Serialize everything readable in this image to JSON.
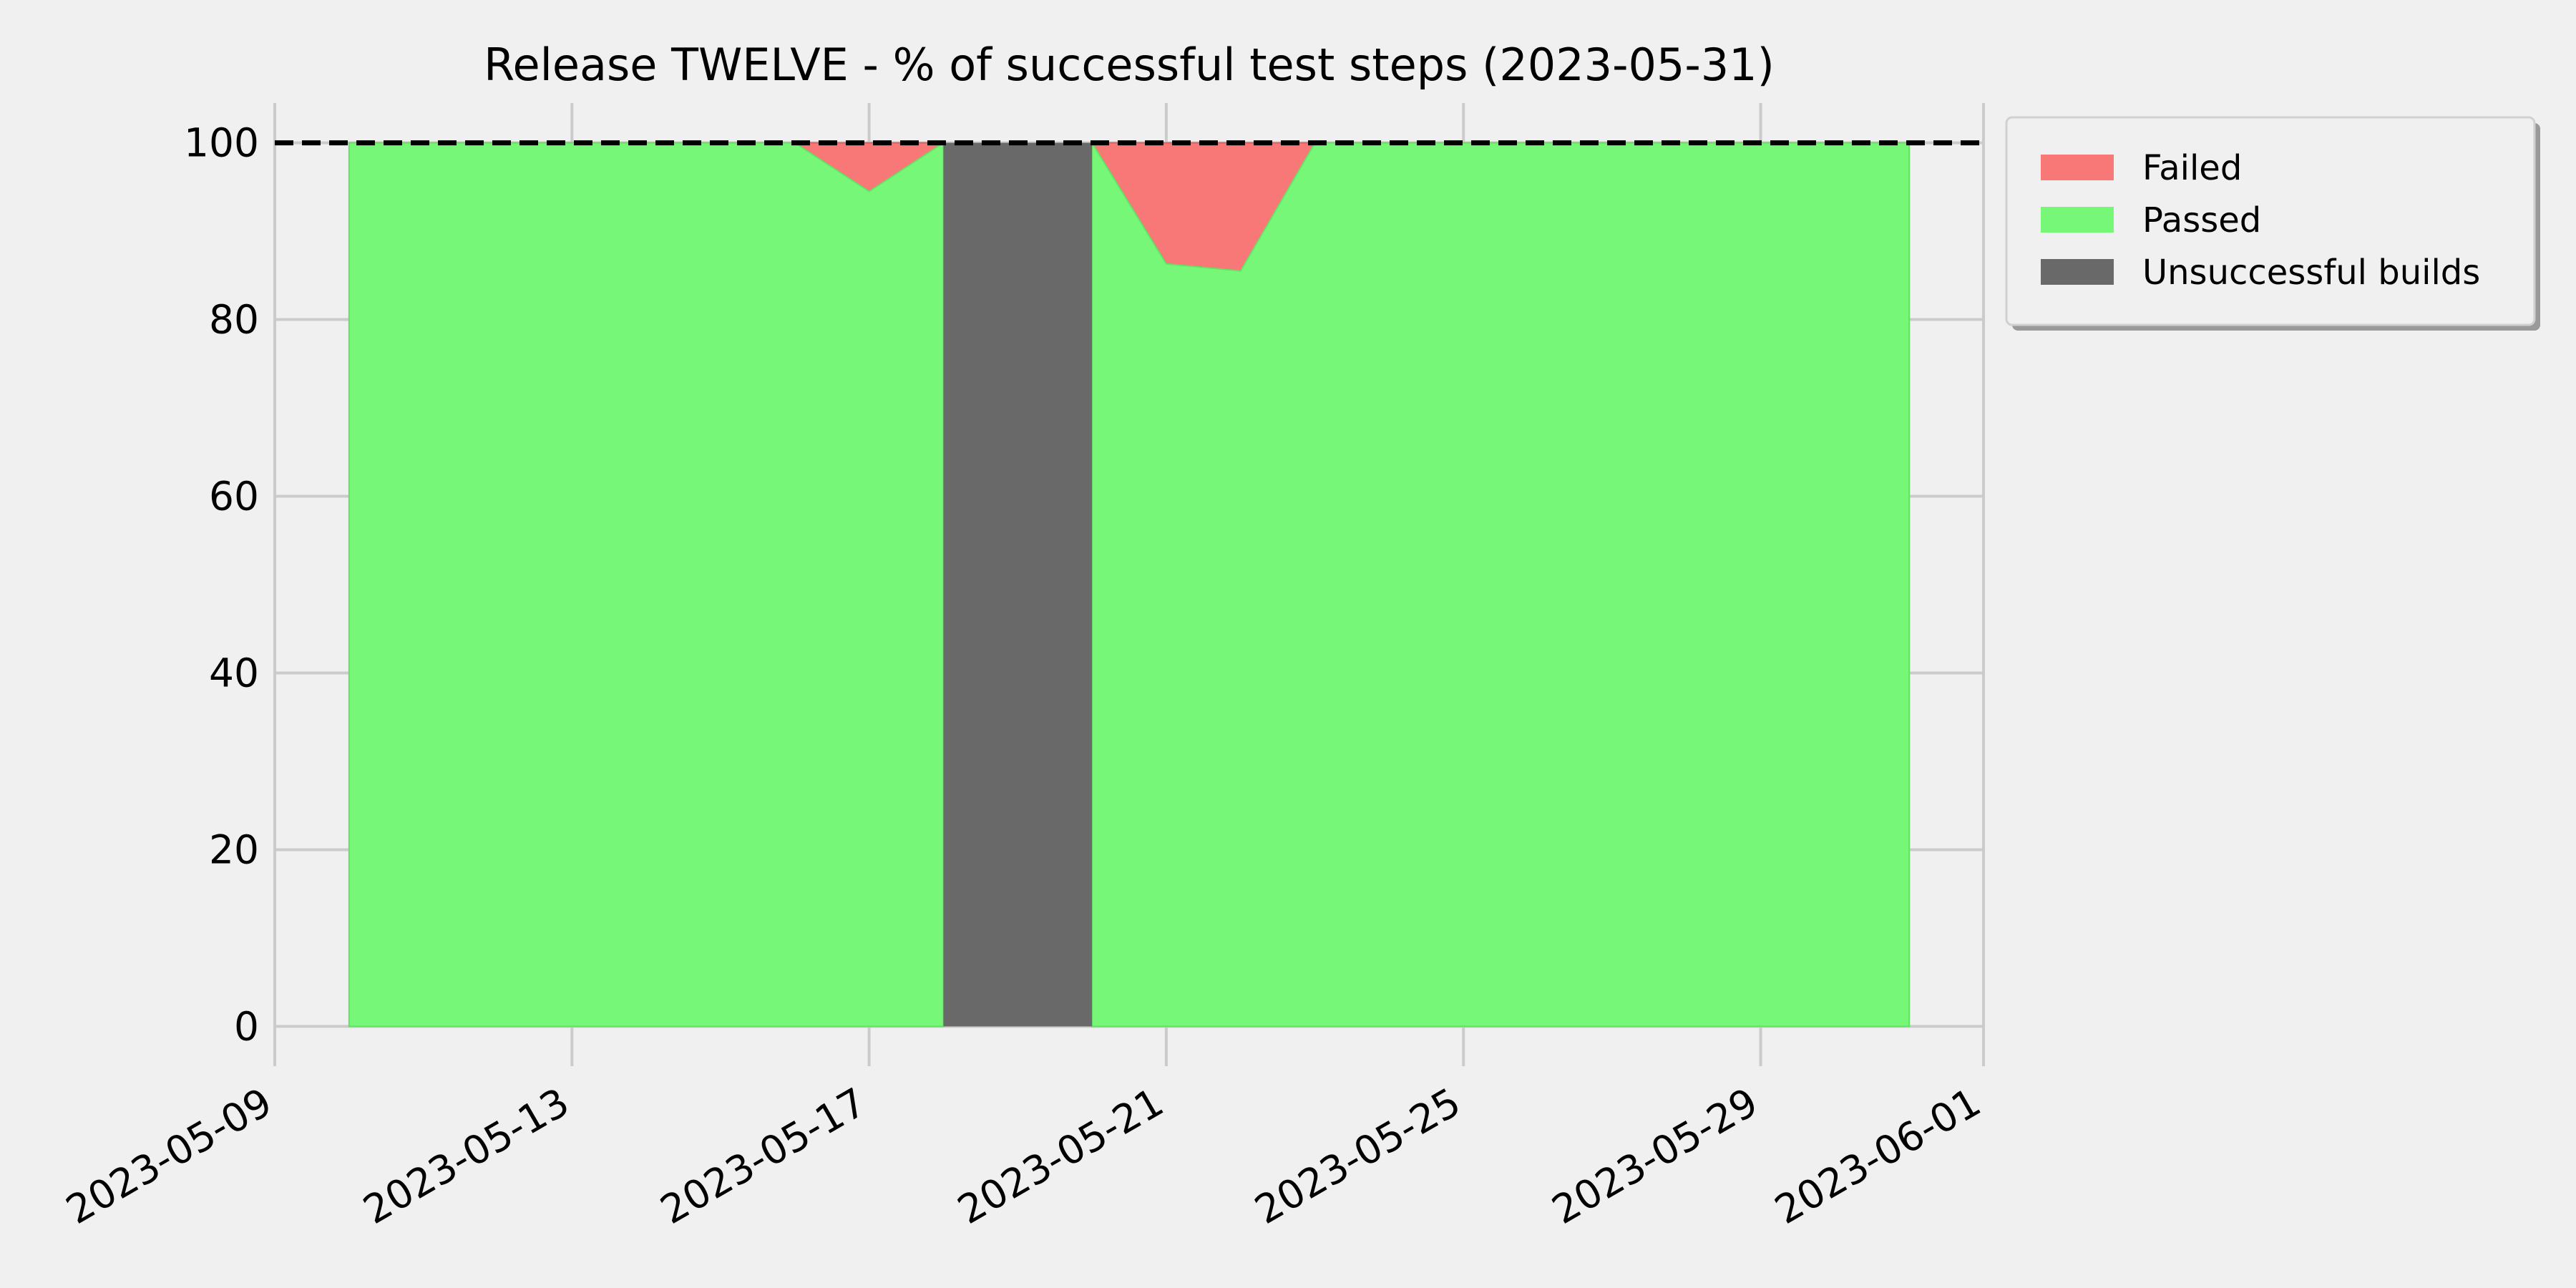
{
  "chart_data": {
    "type": "area",
    "title": "Release TWELVE - % of successful test steps (2023-05-31)",
    "xlabel": "",
    "ylabel": "",
    "x_domain": [
      "2023-05-09",
      "2023-06-01"
    ],
    "x_tick_labels": [
      "2023-05-09",
      "2023-05-13",
      "2023-05-17",
      "2023-05-21",
      "2023-05-25",
      "2023-05-29",
      "2023-06-01"
    ],
    "ylim": [
      -4.5,
      104.5
    ],
    "y_ticks": [
      0,
      20,
      40,
      60,
      80,
      100
    ],
    "grid": true,
    "legend_position": "outside top-right",
    "x": [
      "2023-05-10",
      "2023-05-11",
      "2023-05-12",
      "2023-05-13",
      "2023-05-14",
      "2023-05-15",
      "2023-05-16",
      "2023-05-17",
      "2023-05-18",
      "2023-05-19",
      "2023-05-20",
      "2023-05-21",
      "2023-05-22",
      "2023-05-23",
      "2023-05-24",
      "2023-05-25",
      "2023-05-26",
      "2023-05-27",
      "2023-05-28",
      "2023-05-29",
      "2023-05-30",
      "2023-05-31"
    ],
    "series": [
      {
        "name": "Passed",
        "color": "#77f777",
        "values": [
          100,
          100,
          100,
          100,
          100,
          100,
          100,
          94.5,
          100,
          null,
          100,
          86.3,
          85.5,
          100,
          100,
          100,
          100,
          100,
          100,
          100,
          100,
          100
        ]
      },
      {
        "name": "Failed",
        "color": "#f87878",
        "values": [
          0,
          0,
          0,
          0,
          0,
          0,
          0,
          5.5,
          0,
          null,
          0,
          13.7,
          14.5,
          0,
          0,
          0,
          0,
          0,
          0,
          0,
          0,
          0
        ]
      },
      {
        "name": "Unsuccessful builds",
        "color": "#696969",
        "range": [
          "2023-05-18",
          "2023-05-20"
        ],
        "value": 100
      }
    ],
    "legend_order": [
      "Failed",
      "Passed",
      "Unsuccessful builds"
    ],
    "reference_line": {
      "y": 100,
      "style": "dashed",
      "color": "#000000"
    }
  }
}
